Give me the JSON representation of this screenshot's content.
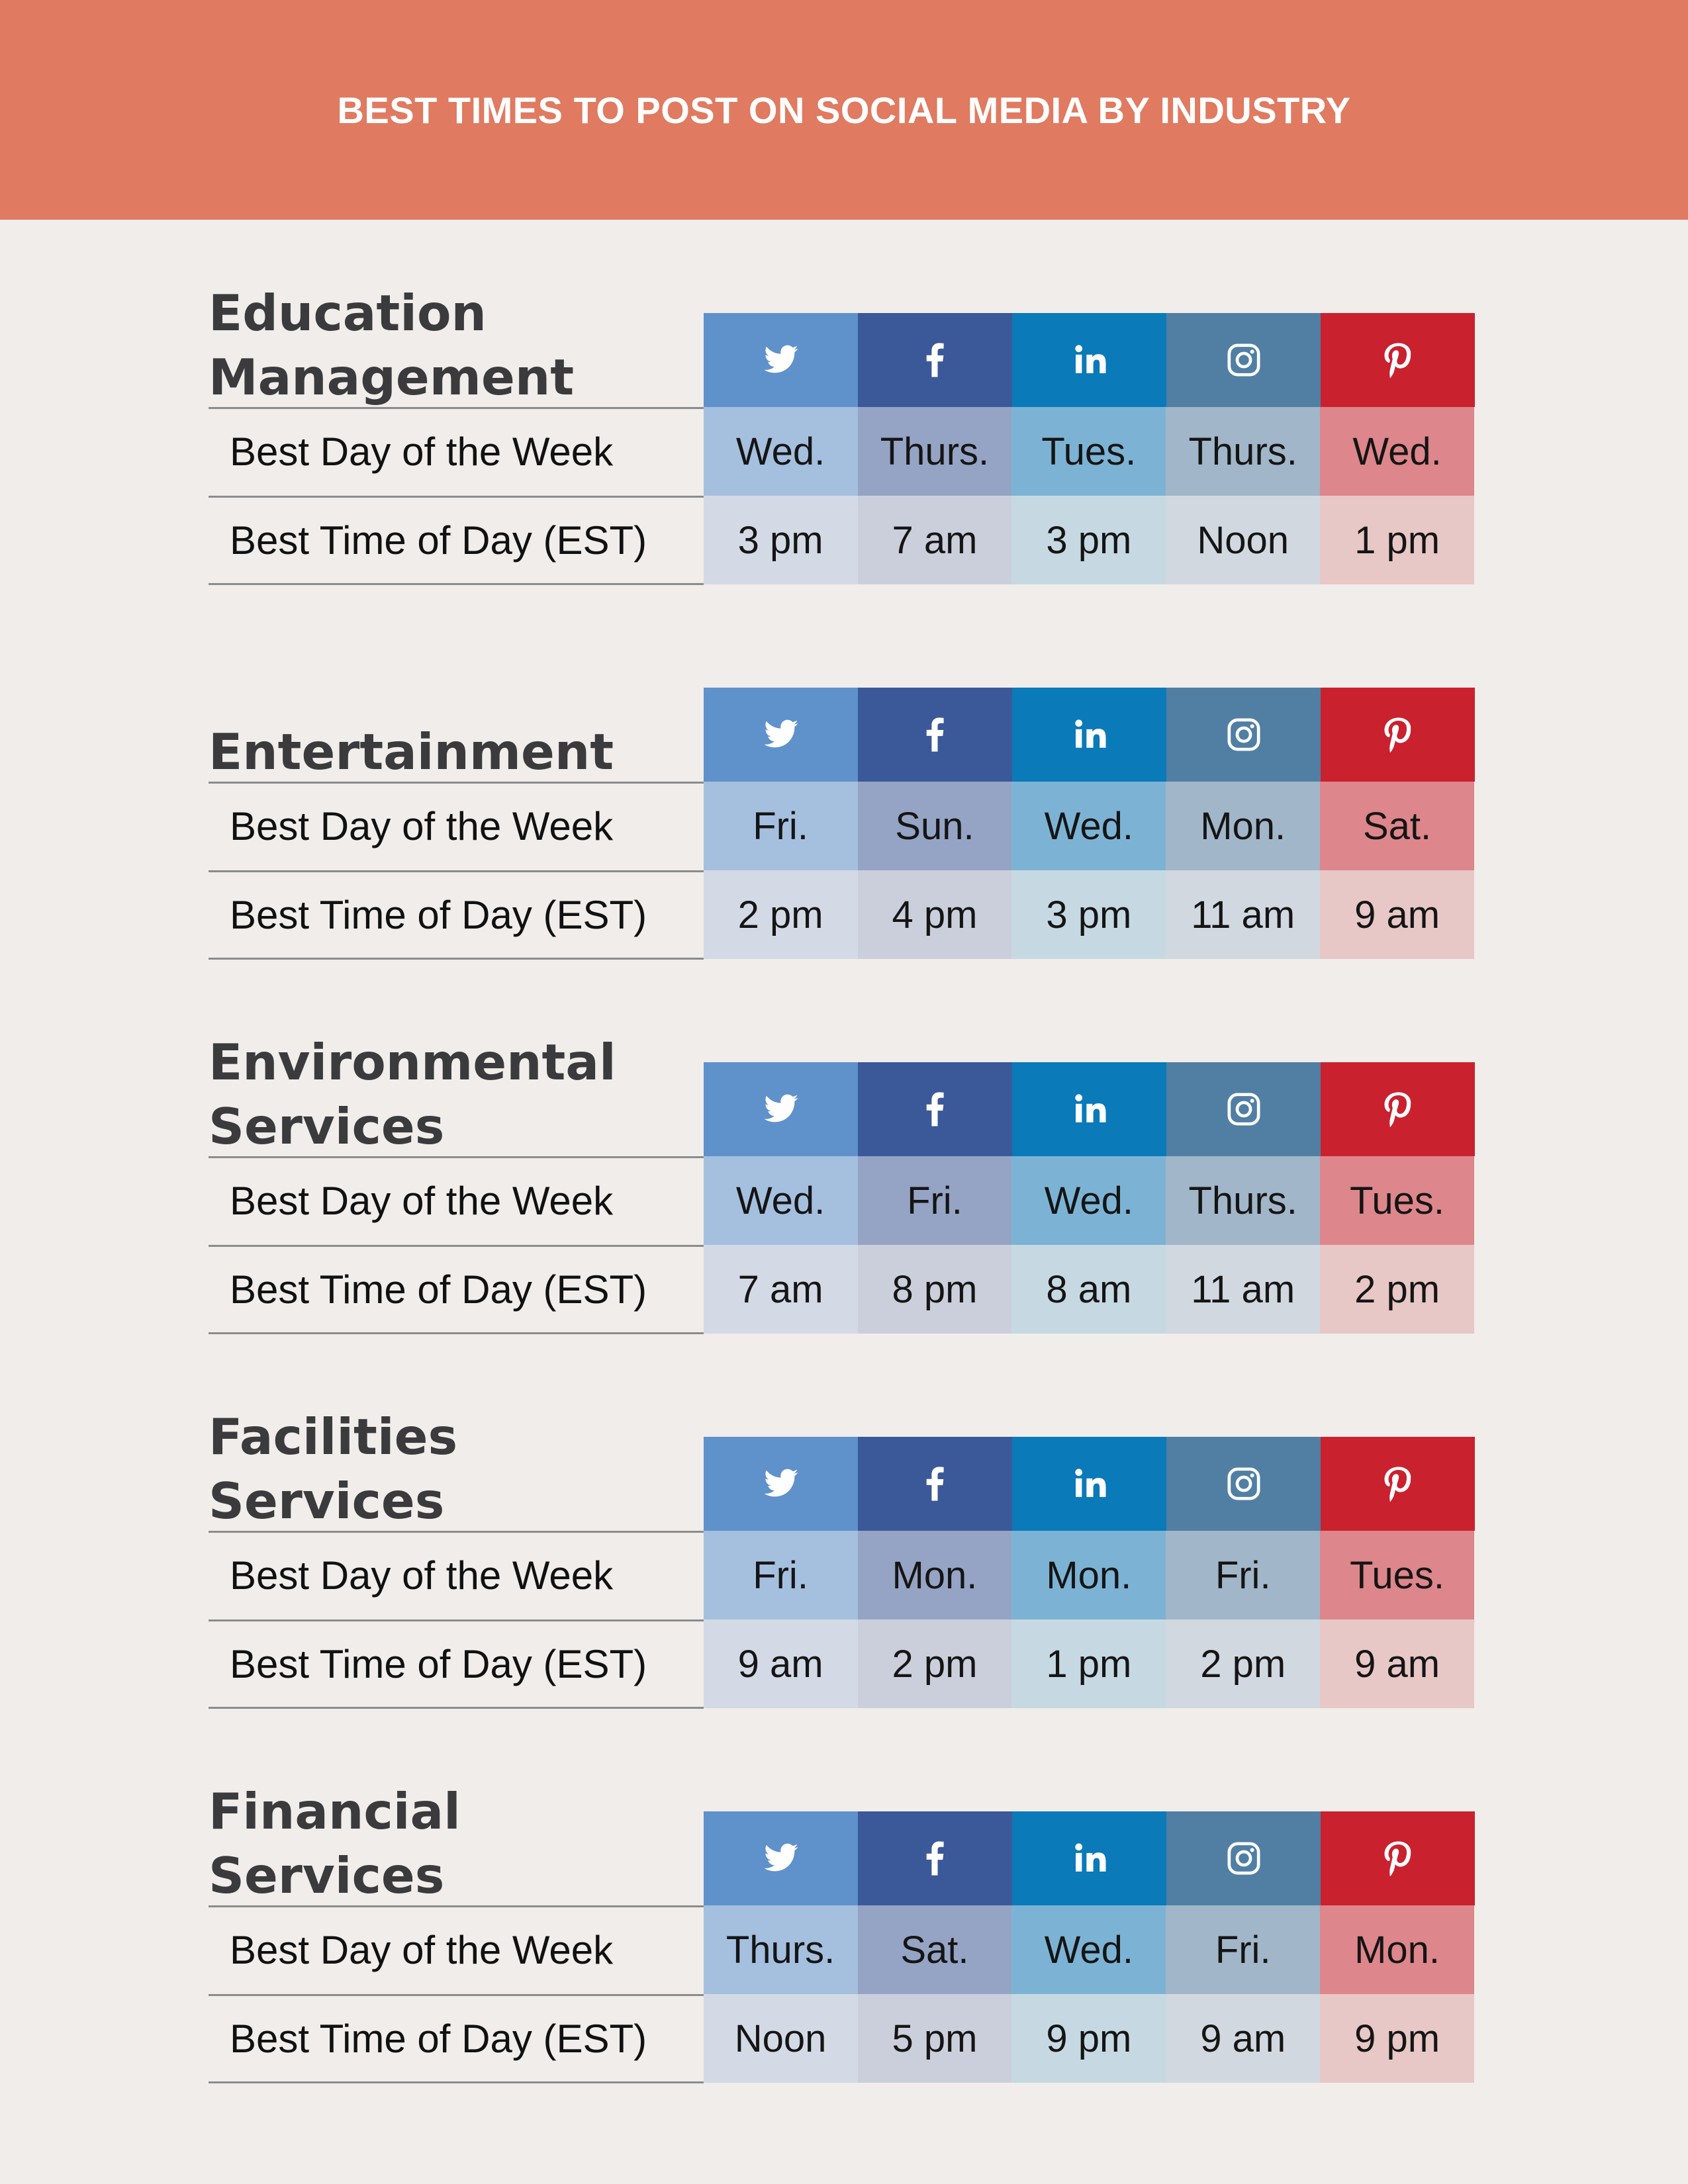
{
  "header": {
    "title": "BEST TIMES TO POST ON SOCIAL MEDIA BY INDUSTRY"
  },
  "colors": {
    "header_bg": "#e07a60",
    "twitter": "#5f91cb",
    "facebook": "#3b5999",
    "linkedin": "#0a7ab9",
    "instagram": "#517fa4",
    "pinterest": "#ca212f"
  },
  "networks": [
    {
      "name": "twitter",
      "icon": "twitter-icon"
    },
    {
      "name": "facebook",
      "icon": "facebook-icon"
    },
    {
      "name": "linkedin",
      "icon": "linkedin-icon"
    },
    {
      "name": "instagram",
      "icon": "instagram-icon"
    },
    {
      "name": "pinterest",
      "icon": "pinterest-icon"
    }
  ],
  "row_labels": {
    "day": "Best Day of the Week",
    "time": "Best Time of Day (EST)"
  },
  "industries": [
    {
      "title_lines": [
        "Education",
        "Management"
      ],
      "days": [
        "Wed.",
        "Thurs.",
        "Tues.",
        "Thurs.",
        "Wed."
      ],
      "times": [
        "3 pm",
        "7 am",
        "3 pm",
        "Noon",
        "1 pm"
      ]
    },
    {
      "title_lines": [
        "Entertainment"
      ],
      "days": [
        "Fri.",
        "Sun.",
        "Wed.",
        "Mon.",
        "Sat."
      ],
      "times": [
        "2 pm",
        "4 pm",
        "3 pm",
        "11 am",
        "9 am"
      ]
    },
    {
      "title_lines": [
        "Environmental",
        "Services"
      ],
      "days": [
        "Wed.",
        "Fri.",
        "Wed.",
        "Thurs.",
        "Tues."
      ],
      "times": [
        "7 am",
        "8 pm",
        "8 am",
        "11 am",
        "2 pm"
      ]
    },
    {
      "title_lines": [
        "Facilities",
        "Services"
      ],
      "days": [
        "Fri.",
        "Mon.",
        "Mon.",
        "Fri.",
        "Tues."
      ],
      "times": [
        "9 am",
        "2 pm",
        "1 pm",
        "2 pm",
        "9 am"
      ]
    },
    {
      "title_lines": [
        "Financial",
        "Services"
      ],
      "days": [
        "Thurs.",
        "Sat.",
        "Wed.",
        "Fri.",
        "Mon."
      ],
      "times": [
        "Noon",
        "5 pm",
        "9 pm",
        "9 am",
        "9 pm"
      ]
    }
  ]
}
